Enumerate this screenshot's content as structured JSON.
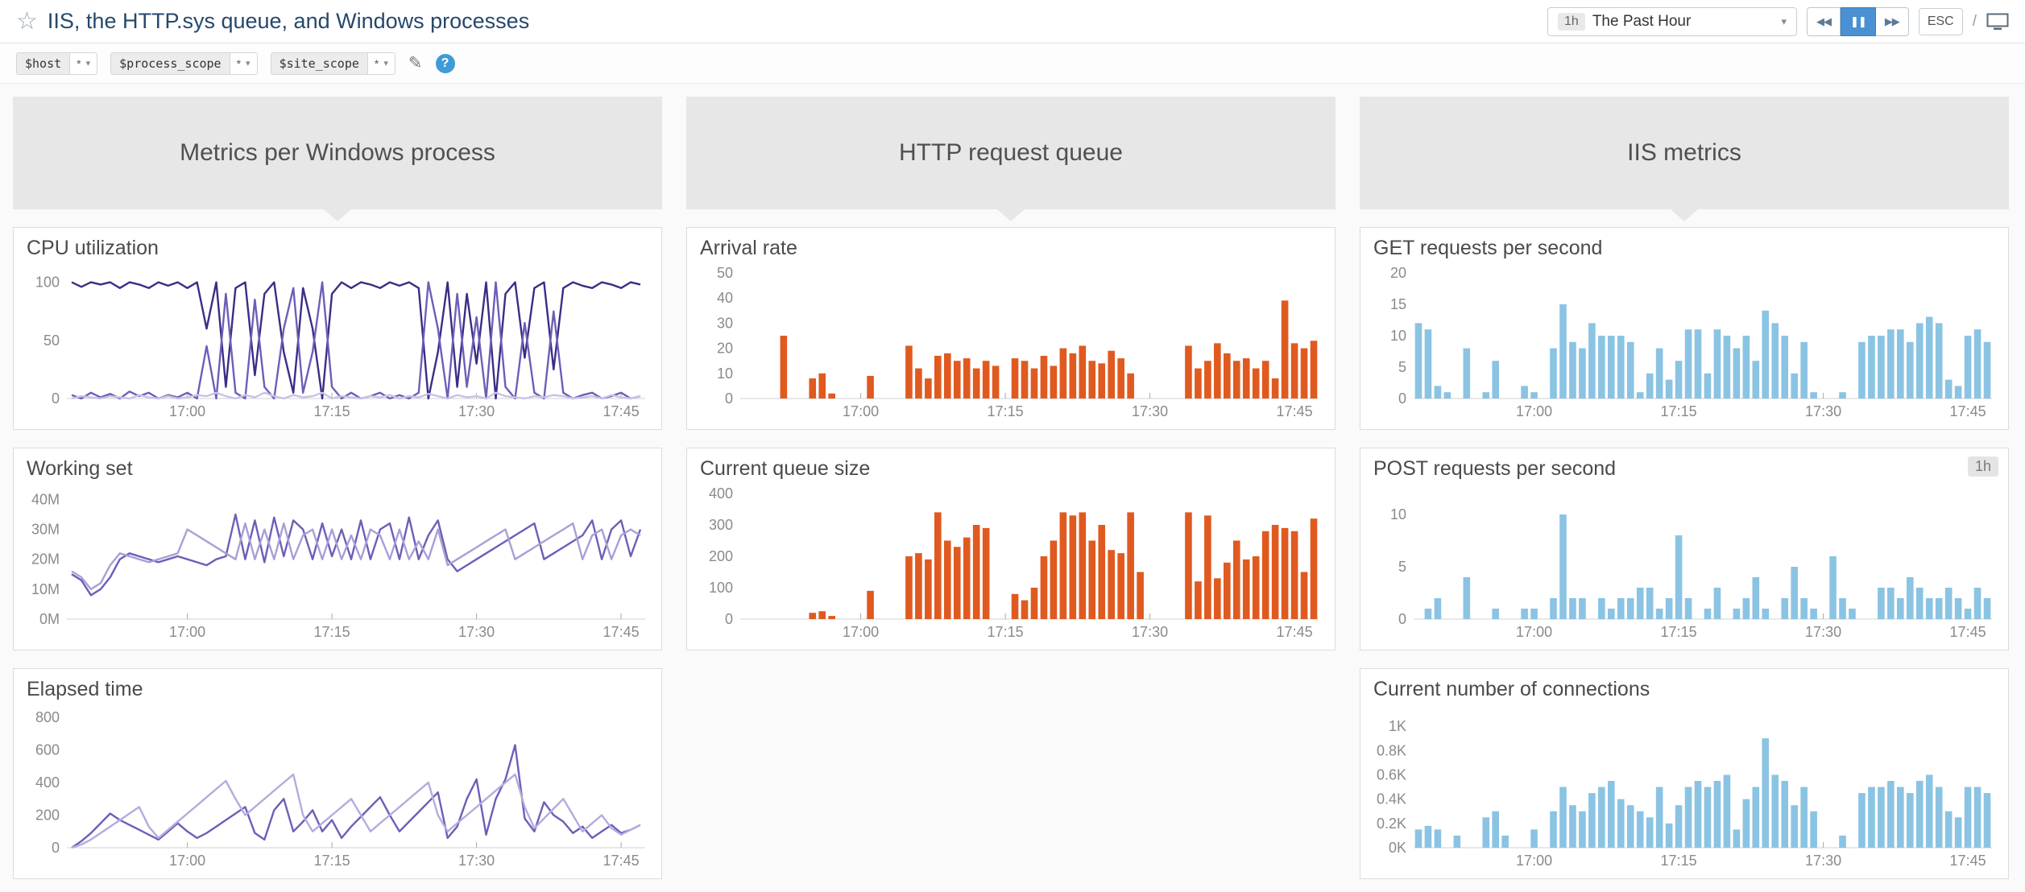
{
  "header": {
    "title": "IIS, the HTTP.sys queue, and Windows processes",
    "time_badge": "1h",
    "time_label": "The Past Hour",
    "esc_label": "ESC",
    "separator": "/"
  },
  "icons": {
    "star": "☆",
    "caret": "▾",
    "rewind": "◀◀",
    "pause": "❚❚",
    "forward": "▶▶",
    "pencil": "✎",
    "help": "?"
  },
  "variables": [
    {
      "name": "$host",
      "value": "*"
    },
    {
      "name": "$process_scope",
      "value": "*"
    },
    {
      "name": "$site_scope",
      "value": "*"
    }
  ],
  "groups": [
    {
      "title": "Metrics per Windows process"
    },
    {
      "title": "HTTP request queue"
    },
    {
      "title": "IIS metrics"
    }
  ],
  "chart_data": [
    {
      "id": "cpu_utilization",
      "type": "line",
      "title": "CPU utilization",
      "ylim": [
        0,
        108
      ],
      "yticks": [
        {
          "v": 0,
          "label": "0"
        },
        {
          "v": 50,
          "label": "50"
        },
        {
          "v": 100,
          "label": "100"
        }
      ],
      "n": 60,
      "xticks": [
        {
          "i": 12,
          "label": "17:00"
        },
        {
          "i": 27,
          "label": "17:15"
        },
        {
          "i": 42,
          "label": "17:30"
        },
        {
          "i": 57,
          "label": "17:45"
        }
      ],
      "series": [
        {
          "color": "#3b2d85",
          "values": [
            100,
            96,
            100,
            98,
            100,
            95,
            100,
            98,
            95,
            100,
            97,
            100,
            95,
            100,
            60,
            100,
            10,
            95,
            100,
            20,
            90,
            100,
            40,
            5,
            95,
            60,
            0,
            90,
            100,
            95,
            100,
            98,
            95,
            100,
            97,
            100,
            95,
            0,
            40,
            100,
            10,
            90,
            30,
            100,
            0,
            90,
            100,
            35,
            95,
            100,
            25,
            95,
            100,
            97,
            95,
            100,
            98,
            95,
            100,
            98
          ]
        },
        {
          "color": "#6c5fb8",
          "values": [
            3,
            0,
            5,
            1,
            4,
            0,
            6,
            2,
            5,
            0,
            3,
            1,
            5,
            0,
            45,
            0,
            90,
            5,
            0,
            85,
            10,
            0,
            60,
            95,
            5,
            40,
            100,
            10,
            0,
            5,
            0,
            2,
            5,
            0,
            3,
            0,
            5,
            100,
            60,
            0,
            90,
            10,
            70,
            0,
            100,
            10,
            0,
            65,
            5,
            0,
            75,
            5,
            0,
            3,
            5,
            0,
            2,
            5,
            0,
            2
          ]
        },
        {
          "color": "#c9c2e6",
          "values": [
            0,
            2,
            1,
            0,
            2,
            1,
            0,
            3,
            1,
            0,
            2,
            0,
            1,
            3,
            2,
            5,
            2,
            0,
            3,
            1,
            5,
            2,
            0,
            3,
            1,
            2,
            5,
            0,
            2,
            1,
            0,
            2,
            1,
            3,
            0,
            2,
            1,
            4,
            2,
            0,
            3,
            1,
            2,
            0,
            5,
            2,
            1,
            0,
            2,
            1,
            3,
            2,
            0,
            1,
            2,
            0,
            3,
            1,
            0,
            2
          ]
        }
      ]
    },
    {
      "id": "working_set",
      "type": "line",
      "title": "Working set",
      "ylim": [
        0,
        42
      ],
      "yticks": [
        {
          "v": 0,
          "label": "0M"
        },
        {
          "v": 10,
          "label": "10M"
        },
        {
          "v": 20,
          "label": "20M"
        },
        {
          "v": 30,
          "label": "30M"
        },
        {
          "v": 40,
          "label": "40M"
        }
      ],
      "n": 60,
      "xticks": [
        {
          "i": 12,
          "label": "17:00"
        },
        {
          "i": 27,
          "label": "17:15"
        },
        {
          "i": 42,
          "label": "17:30"
        },
        {
          "i": 57,
          "label": "17:45"
        }
      ],
      "series": [
        {
          "color": "#6c5fb8",
          "values": [
            15,
            13,
            8,
            10,
            14,
            20,
            22,
            21,
            20,
            19,
            20,
            21,
            20,
            19,
            18,
            20,
            21,
            35,
            20,
            33,
            19,
            34,
            21,
            33,
            30,
            20,
            32,
            21,
            30,
            20,
            33,
            20,
            30,
            32,
            20,
            34,
            20,
            28,
            33,
            20,
            16,
            18,
            20,
            22,
            24,
            26,
            28,
            30,
            32,
            20,
            22,
            24,
            26,
            28,
            33,
            20,
            30,
            33,
            21,
            30
          ]
        },
        {
          "color": "#a89fd6",
          "values": [
            16,
            14,
            10,
            12,
            18,
            22,
            21,
            20,
            19,
            20,
            21,
            22,
            30,
            28,
            26,
            24,
            22,
            20,
            32,
            20,
            30,
            20,
            32,
            20,
            28,
            30,
            20,
            30,
            20,
            28,
            20,
            30,
            28,
            20,
            30,
            20,
            26,
            20,
            30,
            18,
            20,
            22,
            24,
            26,
            28,
            30,
            20,
            22,
            24,
            26,
            28,
            30,
            32,
            20,
            28,
            30,
            20,
            28,
            30,
            28
          ]
        }
      ]
    },
    {
      "id": "elapsed_time",
      "type": "line",
      "title": "Elapsed time",
      "ylim": [
        0,
        820
      ],
      "yticks": [
        {
          "v": 0,
          "label": "0"
        },
        {
          "v": 200,
          "label": "200"
        },
        {
          "v": 400,
          "label": "400"
        },
        {
          "v": 600,
          "label": "600"
        },
        {
          "v": 800,
          "label": "800"
        }
      ],
      "n": 60,
      "xticks": [
        {
          "i": 12,
          "label": "17:00"
        },
        {
          "i": 27,
          "label": "17:15"
        },
        {
          "i": 42,
          "label": "17:30"
        },
        {
          "i": 57,
          "label": "17:45"
        }
      ],
      "series": [
        {
          "color": "#6c5fb8",
          "values": [
            0,
            40,
            90,
            150,
            210,
            170,
            140,
            110,
            80,
            50,
            100,
            150,
            100,
            60,
            90,
            130,
            170,
            210,
            250,
            90,
            50,
            230,
            300,
            100,
            160,
            230,
            100,
            170,
            60,
            130,
            190,
            250,
            310,
            200,
            100,
            160,
            220,
            280,
            340,
            60,
            130,
            300,
            420,
            80,
            300,
            420,
            630,
            180,
            100,
            280,
            200,
            160,
            90,
            130,
            60,
            100,
            140,
            90,
            110,
            140
          ]
        },
        {
          "color": "#b5abdd",
          "values": [
            0,
            20,
            50,
            90,
            130,
            170,
            210,
            250,
            130,
            60,
            110,
            160,
            210,
            260,
            310,
            360,
            410,
            300,
            200,
            250,
            300,
            350,
            400,
            450,
            200,
            100,
            150,
            200,
            250,
            300,
            200,
            100,
            150,
            200,
            250,
            300,
            350,
            400,
            200,
            100,
            150,
            200,
            250,
            300,
            350,
            400,
            450,
            250,
            120,
            180,
            240,
            300,
            200,
            100,
            150,
            200,
            120,
            80,
            110,
            140
          ]
        }
      ]
    },
    {
      "id": "arrival_rate",
      "type": "bar",
      "title": "Arrival rate",
      "ylim": [
        0,
        50
      ],
      "color": "#e05a20",
      "yticks": [
        {
          "v": 0,
          "label": "0"
        },
        {
          "v": 10,
          "label": "10"
        },
        {
          "v": 20,
          "label": "20"
        },
        {
          "v": 30,
          "label": "30"
        },
        {
          "v": 40,
          "label": "40"
        },
        {
          "v": 50,
          "label": "50"
        }
      ],
      "n": 60,
      "xticks": [
        {
          "i": 12,
          "label": "17:00"
        },
        {
          "i": 27,
          "label": "17:15"
        },
        {
          "i": 42,
          "label": "17:30"
        },
        {
          "i": 57,
          "label": "17:45"
        }
      ],
      "values": [
        null,
        null,
        null,
        null,
        25,
        null,
        null,
        8,
        10,
        2,
        null,
        null,
        null,
        9,
        null,
        null,
        null,
        21,
        12,
        8,
        17,
        18,
        15,
        16,
        12,
        15,
        13,
        null,
        16,
        15,
        12,
        17,
        13,
        20,
        18,
        21,
        15,
        14,
        19,
        16,
        10,
        null,
        null,
        null,
        null,
        null,
        21,
        12,
        15,
        22,
        18,
        15,
        16,
        12,
        15,
        8,
        39,
        22,
        20,
        23
      ]
    },
    {
      "id": "current_queue_size",
      "type": "bar",
      "title": "Current queue size",
      "ylim": [
        0,
        400
      ],
      "color": "#e05a20",
      "yticks": [
        {
          "v": 0,
          "label": "0"
        },
        {
          "v": 100,
          "label": "100"
        },
        {
          "v": 200,
          "label": "200"
        },
        {
          "v": 300,
          "label": "300"
        },
        {
          "v": 400,
          "label": "400"
        }
      ],
      "n": 60,
      "xticks": [
        {
          "i": 12,
          "label": "17:00"
        },
        {
          "i": 27,
          "label": "17:15"
        },
        {
          "i": 42,
          "label": "17:30"
        },
        {
          "i": 57,
          "label": "17:45"
        }
      ],
      "values": [
        null,
        null,
        null,
        null,
        null,
        null,
        null,
        20,
        25,
        10,
        null,
        null,
        null,
        90,
        null,
        null,
        null,
        200,
        210,
        190,
        340,
        250,
        230,
        260,
        300,
        290,
        null,
        null,
        80,
        60,
        100,
        200,
        250,
        340,
        330,
        340,
        250,
        300,
        220,
        210,
        340,
        150,
        null,
        null,
        null,
        null,
        340,
        120,
        330,
        130,
        180,
        250,
        190,
        200,
        280,
        300,
        290,
        280,
        150,
        320
      ]
    },
    {
      "id": "get_requests_per_second",
      "type": "bar",
      "title": "GET requests per second",
      "ylim": [
        0,
        20
      ],
      "color": "#8bc3e3",
      "yticks": [
        {
          "v": 0,
          "label": "0"
        },
        {
          "v": 5,
          "label": "5"
        },
        {
          "v": 10,
          "label": "10"
        },
        {
          "v": 15,
          "label": "15"
        },
        {
          "v": 20,
          "label": "20"
        }
      ],
      "n": 60,
      "xticks": [
        {
          "i": 12,
          "label": "17:00"
        },
        {
          "i": 27,
          "label": "17:15"
        },
        {
          "i": 42,
          "label": "17:30"
        },
        {
          "i": 57,
          "label": "17:45"
        }
      ],
      "values": [
        12,
        11,
        2,
        1,
        null,
        8,
        null,
        1,
        6,
        null,
        null,
        2,
        1,
        null,
        8,
        15,
        9,
        8,
        12,
        10,
        10,
        10,
        9,
        1,
        4,
        8,
        3,
        6,
        11,
        11,
        4,
        11,
        10,
        8,
        10,
        6,
        14,
        12,
        10,
        4,
        9,
        1,
        null,
        null,
        1,
        null,
        9,
        10,
        10,
        11,
        11,
        9,
        12,
        13,
        12,
        3,
        2,
        10,
        11,
        9
      ]
    },
    {
      "id": "post_requests_per_second",
      "type": "bar",
      "title": "POST requests per second",
      "badge": "1h",
      "ylim": [
        0,
        12
      ],
      "color": "#8bc3e3",
      "yticks": [
        {
          "v": 0,
          "label": "0"
        },
        {
          "v": 5,
          "label": "5"
        },
        {
          "v": 10,
          "label": "10"
        }
      ],
      "n": 60,
      "xticks": [
        {
          "i": 12,
          "label": "17:00"
        },
        {
          "i": 27,
          "label": "17:15"
        },
        {
          "i": 42,
          "label": "17:30"
        },
        {
          "i": 57,
          "label": "17:45"
        }
      ],
      "values": [
        null,
        1,
        2,
        null,
        null,
        4,
        null,
        null,
        1,
        null,
        null,
        1,
        1,
        null,
        2,
        10,
        2,
        2,
        null,
        2,
        1,
        2,
        2,
        3,
        3,
        1,
        2,
        8,
        2,
        null,
        1,
        3,
        null,
        1,
        2,
        4,
        1,
        null,
        2,
        5,
        2,
        1,
        null,
        6,
        2,
        1,
        null,
        null,
        3,
        3,
        2,
        4,
        3,
        2,
        2,
        3,
        2,
        1,
        3,
        2
      ]
    },
    {
      "id": "current_number_of_connections",
      "type": "bar",
      "title": "Current number of connections",
      "ylim": [
        0,
        1.1
      ],
      "color": "#8bc3e3",
      "yticks": [
        {
          "v": 0,
          "label": "0K"
        },
        {
          "v": 0.2,
          "label": "0.2K"
        },
        {
          "v": 0.4,
          "label": "0.4K"
        },
        {
          "v": 0.6,
          "label": "0.6K"
        },
        {
          "v": 0.8,
          "label": "0.8K"
        },
        {
          "v": 1,
          "label": "1K"
        }
      ],
      "n": 60,
      "xticks": [
        {
          "i": 12,
          "label": "17:00"
        },
        {
          "i": 27,
          "label": "17:15"
        },
        {
          "i": 42,
          "label": "17:30"
        },
        {
          "i": 57,
          "label": "17:45"
        }
      ],
      "values": [
        0.15,
        0.18,
        0.15,
        null,
        0.1,
        null,
        null,
        0.25,
        0.3,
        0.1,
        null,
        null,
        0.15,
        null,
        0.3,
        0.5,
        0.35,
        0.3,
        0.45,
        0.5,
        0.55,
        0.4,
        0.35,
        0.3,
        0.25,
        0.5,
        0.2,
        0.35,
        0.5,
        0.55,
        0.5,
        0.55,
        0.6,
        0.15,
        0.4,
        0.5,
        0.9,
        0.6,
        0.55,
        0.35,
        0.5,
        0.3,
        null,
        null,
        0.1,
        null,
        0.45,
        0.5,
        0.5,
        0.55,
        0.5,
        0.45,
        0.55,
        0.6,
        0.5,
        0.3,
        0.25,
        0.5,
        0.5,
        0.45
      ]
    }
  ]
}
